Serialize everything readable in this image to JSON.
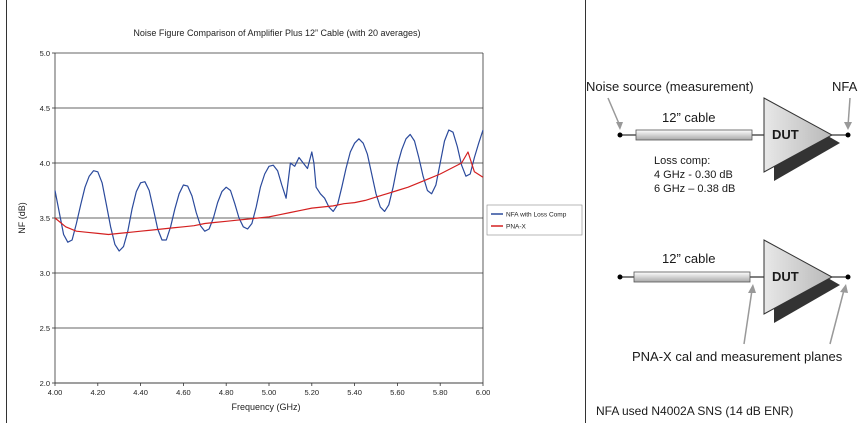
{
  "chart_data": {
    "type": "line",
    "title": "Noise Figure Comparison of Amplifier Plus 12” Cable (with 20 averages)",
    "xlabel": "Frequency (GHz)",
    "ylabel": "NF (dB)",
    "xlim": [
      4.0,
      6.0
    ],
    "ylim": [
      2.0,
      5.0
    ],
    "x_ticks": [
      "4.00",
      "4.20",
      "4.40",
      "4.60",
      "4.80",
      "5.00",
      "5.20",
      "5.40",
      "5.60",
      "5.80",
      "6.00"
    ],
    "y_ticks": [
      "2.0",
      "2.5",
      "3.0",
      "3.5",
      "4.0",
      "4.5",
      "5.0"
    ],
    "grid": "horizontal",
    "legend_position": "right",
    "series": [
      {
        "name": "NFA with Loss Comp",
        "color": "#2b4a9c",
        "x": [
          4.0,
          4.02,
          4.04,
          4.06,
          4.08,
          4.1,
          4.12,
          4.14,
          4.16,
          4.18,
          4.2,
          4.22,
          4.24,
          4.26,
          4.28,
          4.3,
          4.32,
          4.34,
          4.36,
          4.38,
          4.4,
          4.42,
          4.44,
          4.46,
          4.48,
          4.5,
          4.52,
          4.54,
          4.56,
          4.58,
          4.6,
          4.62,
          4.64,
          4.66,
          4.68,
          4.7,
          4.72,
          4.74,
          4.76,
          4.78,
          4.8,
          4.82,
          4.84,
          4.86,
          4.88,
          4.9,
          4.92,
          4.94,
          4.96,
          4.98,
          5.0,
          5.02,
          5.04,
          5.06,
          5.08,
          5.1,
          5.12,
          5.14,
          5.16,
          5.18,
          5.2,
          5.21,
          5.22,
          5.24,
          5.26,
          5.28,
          5.3,
          5.32,
          5.34,
          5.36,
          5.38,
          5.4,
          5.42,
          5.44,
          5.46,
          5.48,
          5.5,
          5.52,
          5.54,
          5.56,
          5.58,
          5.6,
          5.62,
          5.64,
          5.66,
          5.68,
          5.7,
          5.72,
          5.74,
          5.76,
          5.78,
          5.8,
          5.82,
          5.84,
          5.86,
          5.88,
          5.9,
          5.92,
          5.94,
          5.96,
          5.98,
          6.0
        ],
        "values": [
          3.75,
          3.55,
          3.35,
          3.28,
          3.3,
          3.45,
          3.62,
          3.78,
          3.88,
          3.93,
          3.92,
          3.82,
          3.62,
          3.42,
          3.26,
          3.2,
          3.24,
          3.38,
          3.58,
          3.74,
          3.82,
          3.83,
          3.75,
          3.58,
          3.4,
          3.3,
          3.3,
          3.42,
          3.58,
          3.72,
          3.8,
          3.79,
          3.7,
          3.55,
          3.43,
          3.38,
          3.4,
          3.5,
          3.64,
          3.74,
          3.78,
          3.75,
          3.63,
          3.5,
          3.42,
          3.4,
          3.45,
          3.6,
          3.78,
          3.9,
          3.97,
          3.98,
          3.93,
          3.8,
          3.68,
          4.0,
          3.97,
          4.05,
          4.0,
          3.95,
          4.1,
          4.0,
          3.78,
          3.72,
          3.68,
          3.6,
          3.56,
          3.62,
          3.78,
          3.95,
          4.1,
          4.18,
          4.22,
          4.18,
          4.08,
          3.9,
          3.72,
          3.6,
          3.56,
          3.62,
          3.78,
          3.98,
          4.12,
          4.22,
          4.26,
          4.2,
          4.05,
          3.88,
          3.75,
          3.72,
          3.8,
          4.0,
          4.2,
          4.3,
          4.28,
          4.15,
          3.98,
          3.88,
          3.9,
          4.05,
          4.18,
          4.3
        ]
      },
      {
        "name": "PNA-X",
        "color": "#d42020",
        "x": [
          4.0,
          4.05,
          4.1,
          4.15,
          4.2,
          4.25,
          4.3,
          4.35,
          4.4,
          4.45,
          4.5,
          4.55,
          4.6,
          4.65,
          4.7,
          4.75,
          4.8,
          4.85,
          4.9,
          4.95,
          5.0,
          5.05,
          5.1,
          5.15,
          5.2,
          5.25,
          5.3,
          5.35,
          5.4,
          5.45,
          5.5,
          5.55,
          5.6,
          5.65,
          5.7,
          5.75,
          5.8,
          5.85,
          5.9,
          5.93,
          5.96,
          6.0
        ],
        "values": [
          3.5,
          3.42,
          3.38,
          3.37,
          3.36,
          3.35,
          3.36,
          3.37,
          3.38,
          3.39,
          3.4,
          3.41,
          3.42,
          3.43,
          3.45,
          3.46,
          3.47,
          3.48,
          3.49,
          3.5,
          3.51,
          3.53,
          3.55,
          3.57,
          3.59,
          3.6,
          3.61,
          3.63,
          3.64,
          3.66,
          3.69,
          3.72,
          3.75,
          3.78,
          3.82,
          3.86,
          3.9,
          3.95,
          4.0,
          4.1,
          3.92,
          3.87
        ]
      }
    ]
  },
  "diagram": {
    "noise_source_label": "Noise source (measurement)",
    "nfa_label": "NFA",
    "cable_label_top": "12” cable",
    "dut_label_top": "DUT",
    "loss_comp_title": "Loss comp:",
    "loss_comp_line1": "4 GHz - 0.30 dB",
    "loss_comp_line2": "6 GHz – 0.38 dB",
    "cable_label_bottom": "12” cable",
    "dut_label_bottom": "DUT",
    "planes_label": "PNA-X cal and measurement planes",
    "footer_note": "NFA used N4002A SNS (14 dB ENR)"
  }
}
